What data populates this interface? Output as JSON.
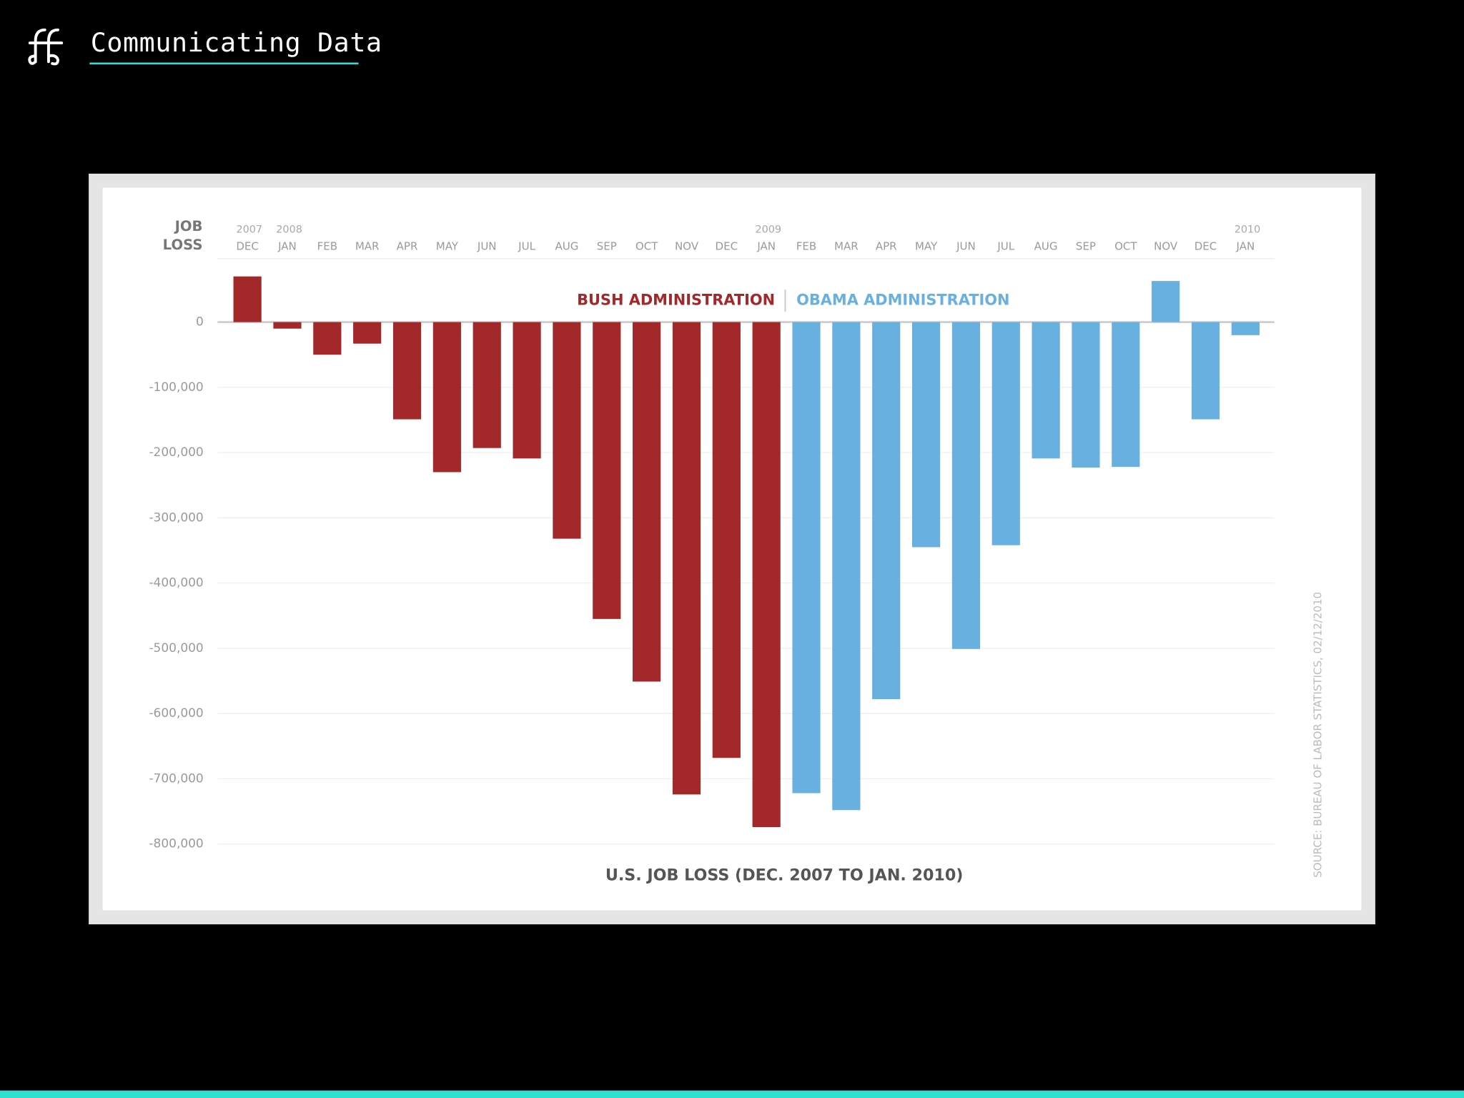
{
  "header": {
    "title": "Communicating Data"
  },
  "chart_data": {
    "type": "bar",
    "title": "U.S. JOB LOSS (DEC. 2007 TO JAN. 2010)",
    "ylabel": [
      "JOB",
      "LOSS"
    ],
    "source": "SOURCE: BUREAU OF LABOR STATISTICS, 02/12/2010",
    "categories": [
      "DEC",
      "JAN",
      "FEB",
      "MAR",
      "APR",
      "MAY",
      "JUN",
      "JUL",
      "AUG",
      "SEP",
      "OCT",
      "NOV",
      "DEC",
      "JAN",
      "FEB",
      "MAR",
      "APR",
      "MAY",
      "JUN",
      "JUL",
      "AUG",
      "SEP",
      "OCT",
      "NOV",
      "DEC",
      "JAN"
    ],
    "years": [
      "2007",
      "2008",
      null,
      null,
      null,
      null,
      null,
      null,
      null,
      null,
      null,
      null,
      null,
      "2009",
      null,
      null,
      null,
      null,
      null,
      null,
      null,
      null,
      null,
      null,
      null,
      "2010"
    ],
    "series": [
      {
        "name": "BUSH ADMINISTRATION",
        "color": "#a3282a",
        "values": [
          70000,
          -10000,
          -50000,
          -33000,
          -149000,
          -230000,
          -193000,
          -209000,
          -332000,
          -455000,
          -551000,
          -724000,
          -668000,
          -774000,
          null,
          null,
          null,
          null,
          null,
          null,
          null,
          null,
          null,
          null,
          null,
          null
        ]
      },
      {
        "name": "OBAMA ADMINISTRATION",
        "color": "#68b0df",
        "values": [
          null,
          null,
          null,
          null,
          null,
          null,
          null,
          null,
          null,
          null,
          null,
          null,
          null,
          null,
          -722000,
          -748000,
          -578000,
          -345000,
          -501000,
          -342000,
          -209000,
          -223000,
          -222000,
          63000,
          -149000,
          -20000
        ]
      }
    ],
    "ylim": [
      -800000,
      100000
    ],
    "yticks": [
      0,
      {
        "value": -100000,
        "label": "-100,000"
      },
      {
        "value": -200000,
        "label": "-200,000"
      },
      {
        "value": -300000,
        "label": "-300,000"
      },
      {
        "value": -400000,
        "label": "-400,000"
      },
      {
        "value": -500000,
        "label": "-500,000"
      },
      {
        "value": -600000,
        "label": "-600,000"
      },
      {
        "value": -700000,
        "label": "-700,000"
      },
      {
        "value": -800000,
        "label": "-800,000"
      }
    ],
    "grid": true
  }
}
